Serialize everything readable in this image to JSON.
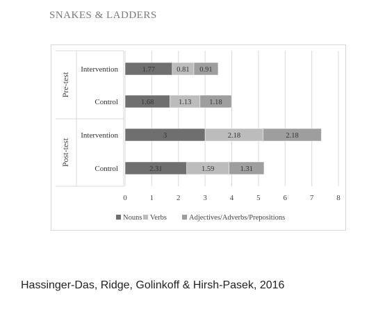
{
  "page": {
    "title": "SNAKES & LADDERS",
    "footer": "Hassinger-Das, Ridge, Golinkoff & Hirsh-Pasek, 2016"
  },
  "chart_data": {
    "type": "bar",
    "orientation": "horizontal",
    "stacked": true,
    "groups": [
      {
        "label": "Pre-test",
        "categories": [
          "Intervention",
          "Control"
        ]
      },
      {
        "label": "Post-test",
        "categories": [
          "Intervention",
          "Control"
        ]
      }
    ],
    "categories": [
      "Pre-test / Intervention",
      "Pre-test / Control",
      "Post-test / Intervention",
      "Post-test / Control"
    ],
    "series": [
      {
        "name": "Nouns",
        "color": "#6f6f6f",
        "values": [
          1.77,
          1.68,
          3,
          2.31
        ],
        "labels": [
          "1.77",
          "1.68",
          "3",
          "2.31"
        ]
      },
      {
        "name": "Verbs",
        "color": "#bcbcbc",
        "values": [
          0.81,
          1.13,
          2.18,
          1.59
        ],
        "labels": [
          "0.81",
          "1.13",
          "2.18",
          "1.59"
        ]
      },
      {
        "name": "Adjectives/Adverbs/Prepositions",
        "color": "#9e9e9e",
        "values": [
          0.91,
          1.18,
          2.18,
          1.31
        ],
        "labels": [
          "0.91",
          "1.18",
          "2.18",
          "1.31"
        ]
      }
    ],
    "xlim": [
      0,
      8
    ],
    "xticks": [
      "0",
      "1",
      "2",
      "3",
      "4",
      "5",
      "6",
      "7",
      "8"
    ],
    "grid": "vertical",
    "legend": "bottom"
  }
}
